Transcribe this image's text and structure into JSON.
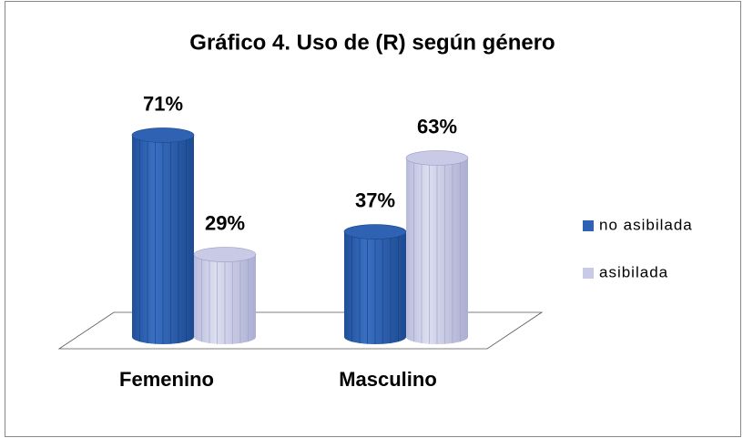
{
  "chart_data": {
    "type": "bar3d",
    "title": "Gráfico 4. Uso de (R) según género",
    "categories": [
      "Femenino",
      "Masculino"
    ],
    "series": [
      {
        "name": "no asibilada",
        "color": "#2f62b3",
        "values": [
          71,
          37
        ],
        "value_labels": [
          "71%",
          "37%"
        ]
      },
      {
        "name": "asibilada",
        "color": "#c8cae6",
        "values": [
          29,
          63
        ],
        "value_labels": [
          "29%",
          "63%"
        ]
      }
    ],
    "legend": "right"
  }
}
